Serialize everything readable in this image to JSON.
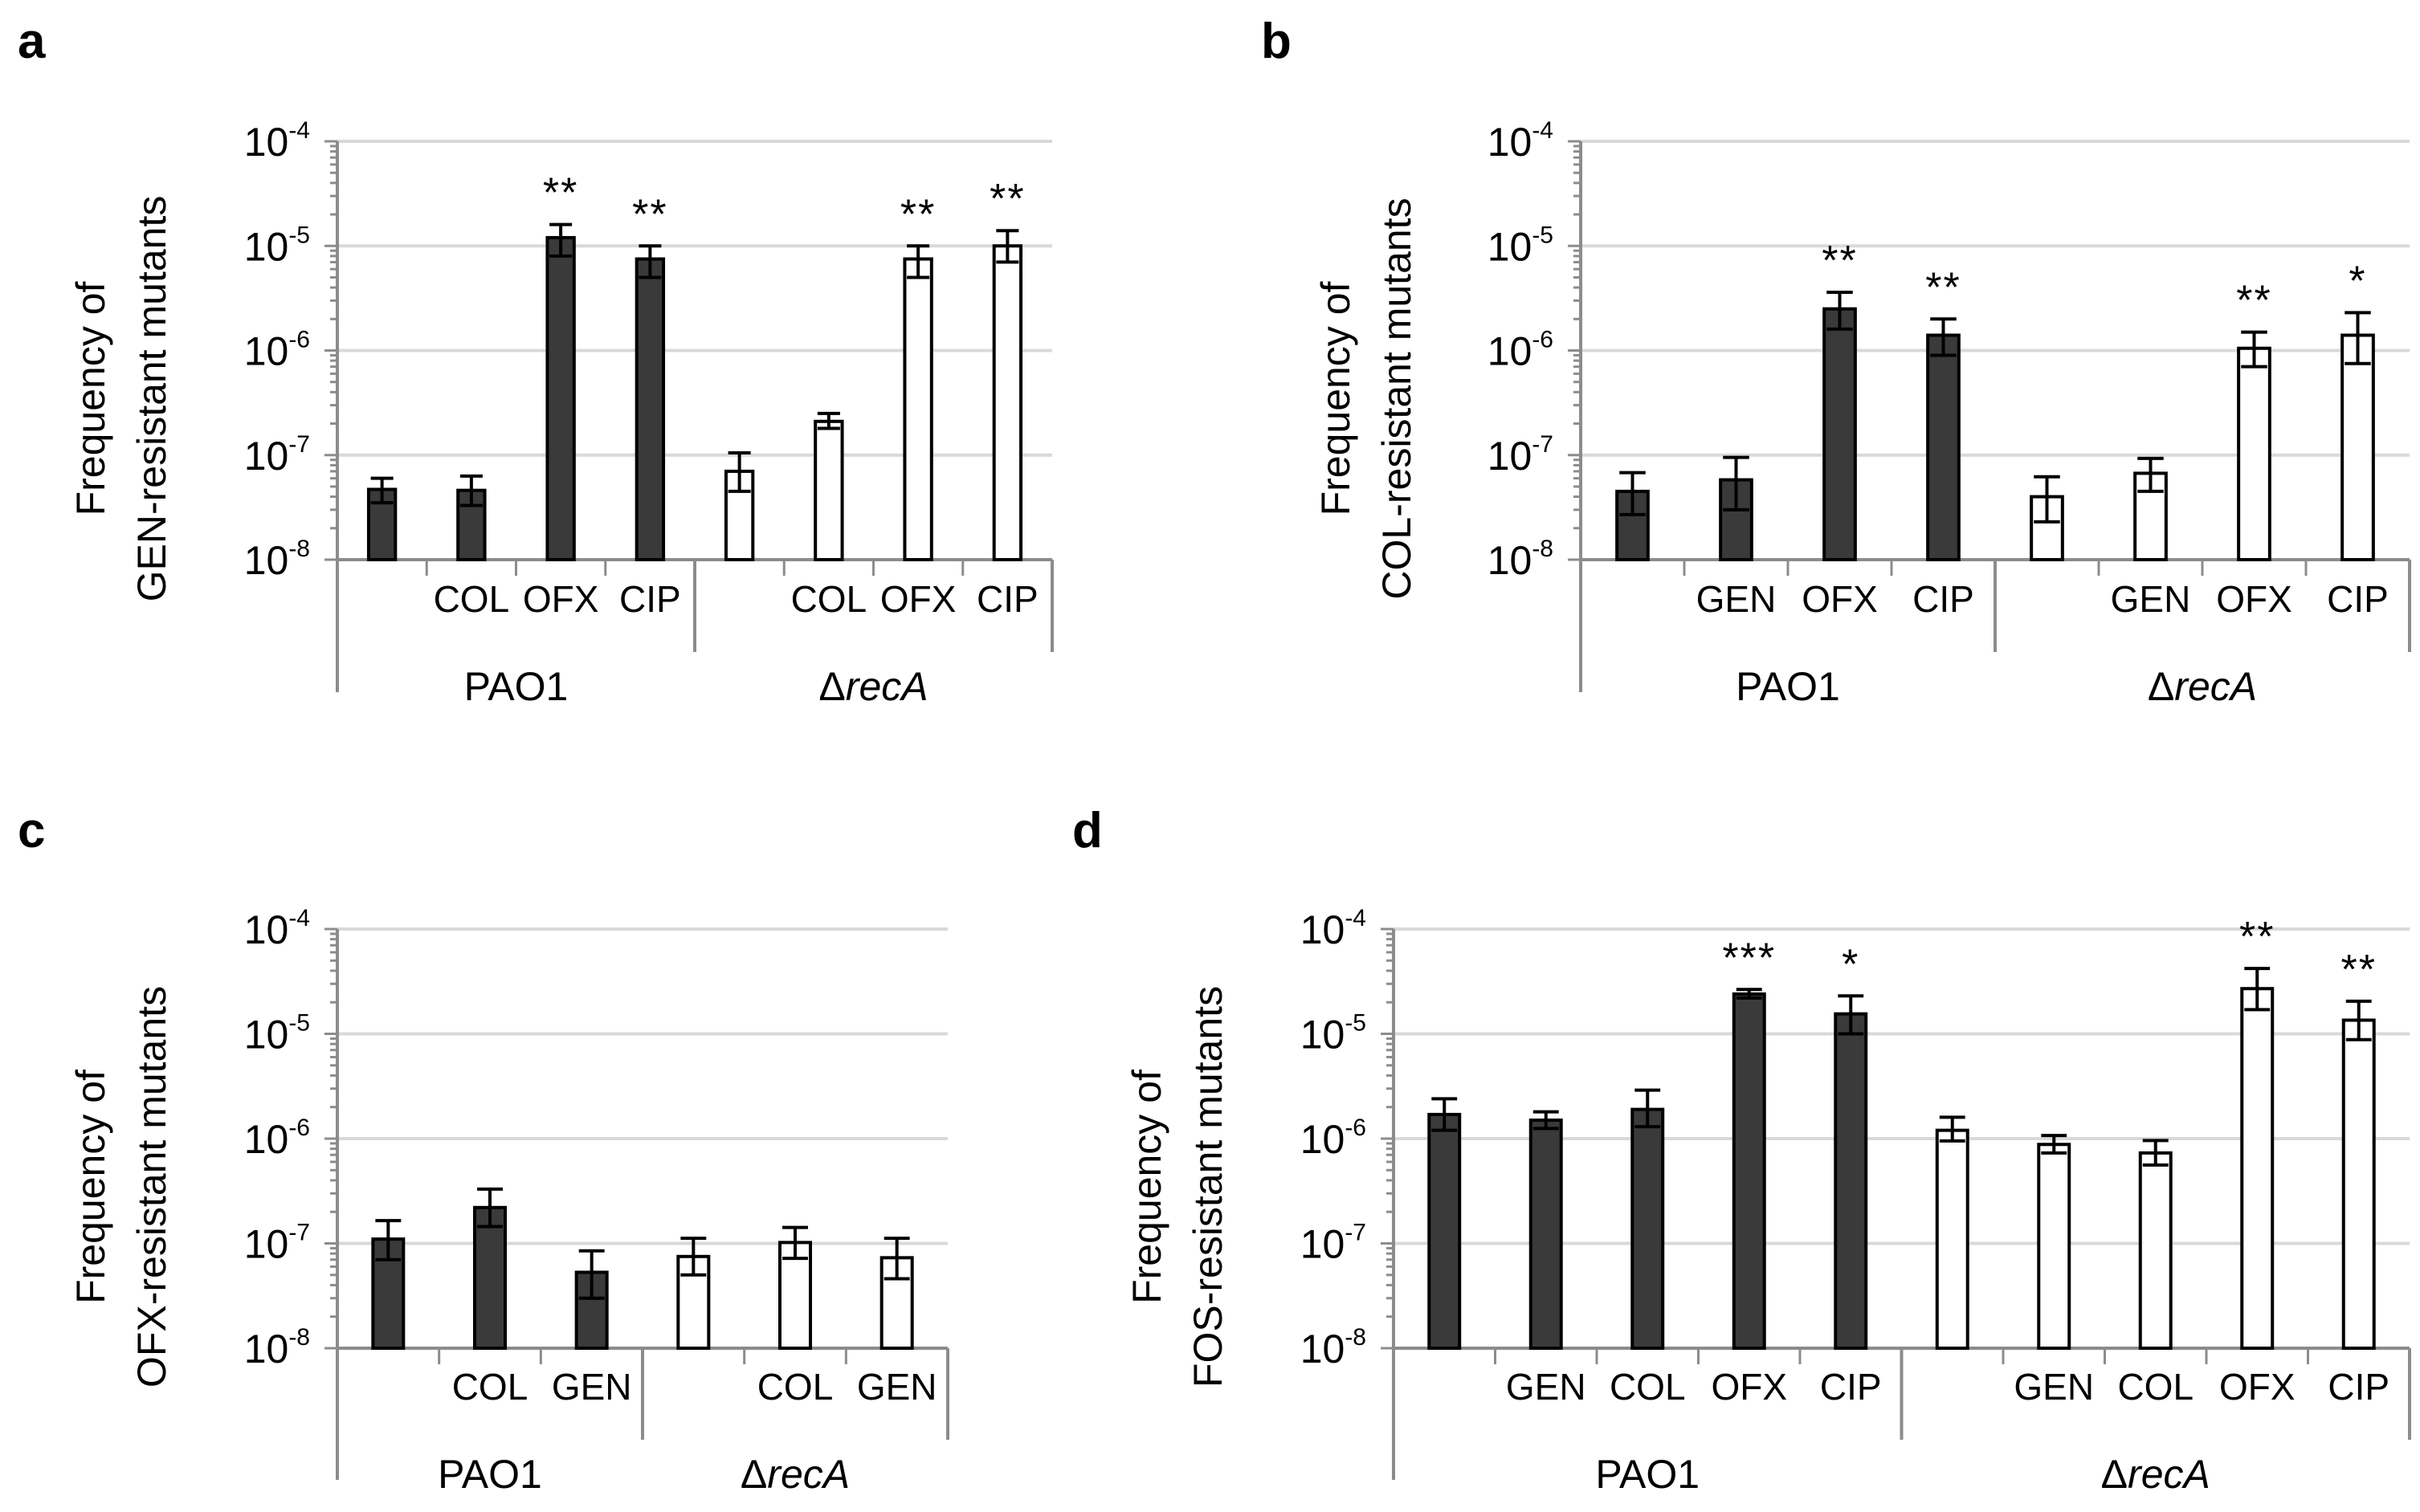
{
  "chart_data": [
    {
      "panel": "a",
      "type": "bar",
      "scale": "log",
      "ylabel_lines": [
        "Frequency of",
        "GEN-resistant mutants"
      ],
      "yticks": [
        {
          "base": "10",
          "exp": "-8"
        },
        {
          "base": "10",
          "exp": "-7"
        },
        {
          "base": "10",
          "exp": "-6"
        },
        {
          "base": "10",
          "exp": "-5"
        },
        {
          "base": "10",
          "exp": "-4"
        }
      ],
      "ylim_exp": [
        -8,
        -4
      ],
      "grid": true,
      "groups": [
        {
          "label": "PAO1",
          "italic": false,
          "fill": "#3a3a3a",
          "bars": [
            {
              "category": "",
              "value": 4.7e-08,
              "err_low": 3.5e-08,
              "err_high": 6e-08,
              "sig": ""
            },
            {
              "category": "COL",
              "value": 4.6e-08,
              "err_low": 3.3e-08,
              "err_high": 6.3e-08,
              "sig": ""
            },
            {
              "category": "OFX",
              "value": 1.2e-05,
              "err_low": 8e-06,
              "err_high": 1.6e-05,
              "sig": "**"
            },
            {
              "category": "CIP",
              "value": 7.5e-06,
              "err_low": 5e-06,
              "err_high": 1e-05,
              "sig": "**"
            }
          ]
        },
        {
          "label_prefix": "Δ",
          "label": "recA",
          "italic": true,
          "fill": "#ffffff",
          "bars": [
            {
              "category": "",
              "value": 7e-08,
              "err_low": 4.5e-08,
              "err_high": 1.05e-07,
              "sig": ""
            },
            {
              "category": "COL",
              "value": 2.1e-07,
              "err_low": 1.8e-07,
              "err_high": 2.5e-07,
              "sig": ""
            },
            {
              "category": "OFX",
              "value": 7.5e-06,
              "err_low": 5e-06,
              "err_high": 1e-05,
              "sig": "**"
            },
            {
              "category": "CIP",
              "value": 1e-05,
              "err_low": 7e-06,
              "err_high": 1.4e-05,
              "sig": "**"
            }
          ]
        }
      ]
    },
    {
      "panel": "b",
      "type": "bar",
      "scale": "log",
      "ylabel_lines": [
        "Frequency of",
        "COL-resistant mutants"
      ],
      "yticks": [
        {
          "base": "10",
          "exp": "-8"
        },
        {
          "base": "10",
          "exp": "-7"
        },
        {
          "base": "10",
          "exp": "-6"
        },
        {
          "base": "10",
          "exp": "-5"
        },
        {
          "base": "10",
          "exp": "-4"
        }
      ],
      "ylim_exp": [
        -8,
        -4
      ],
      "grid": true,
      "groups": [
        {
          "label": "PAO1",
          "italic": false,
          "fill": "#3a3a3a",
          "bars": [
            {
              "category": "",
              "value": 4.5e-08,
              "err_low": 2.7e-08,
              "err_high": 6.8e-08,
              "sig": ""
            },
            {
              "category": "GEN",
              "value": 5.8e-08,
              "err_low": 3e-08,
              "err_high": 9.5e-08,
              "sig": ""
            },
            {
              "category": "OFX",
              "value": 2.5e-06,
              "err_low": 1.6e-06,
              "err_high": 3.6e-06,
              "sig": "**"
            },
            {
              "category": "CIP",
              "value": 1.4e-06,
              "err_low": 9e-07,
              "err_high": 2e-06,
              "sig": "**"
            }
          ]
        },
        {
          "label_prefix": "Δ",
          "label": "recA",
          "italic": true,
          "fill": "#ffffff",
          "bars": [
            {
              "category": "",
              "value": 4e-08,
              "err_low": 2.3e-08,
              "err_high": 6.2e-08,
              "sig": ""
            },
            {
              "category": "GEN",
              "value": 6.7e-08,
              "err_low": 4.5e-08,
              "err_high": 9.3e-08,
              "sig": ""
            },
            {
              "category": "OFX",
              "value": 1.05e-06,
              "err_low": 7e-07,
              "err_high": 1.5e-06,
              "sig": "**"
            },
            {
              "category": "CIP",
              "value": 1.4e-06,
              "err_low": 7.5e-07,
              "err_high": 2.3e-06,
              "sig": "*"
            }
          ]
        }
      ]
    },
    {
      "panel": "c",
      "type": "bar",
      "scale": "log",
      "ylabel_lines": [
        "Frequency of",
        "OFX-resistant mutants"
      ],
      "yticks": [
        {
          "base": "10",
          "exp": "-8"
        },
        {
          "base": "10",
          "exp": "-7"
        },
        {
          "base": "10",
          "exp": "-6"
        },
        {
          "base": "10",
          "exp": "-5"
        },
        {
          "base": "10",
          "exp": "-4"
        }
      ],
      "ylim_exp": [
        -8,
        -4
      ],
      "grid": true,
      "groups": [
        {
          "label": "PAO1",
          "italic": false,
          "fill": "#3a3a3a",
          "bars": [
            {
              "category": "",
              "value": 1.1e-07,
              "err_low": 7e-08,
              "err_high": 1.65e-07,
              "sig": ""
            },
            {
              "category": "COL",
              "value": 2.2e-07,
              "err_low": 1.45e-07,
              "err_high": 3.3e-07,
              "sig": ""
            },
            {
              "category": "GEN",
              "value": 5.3e-08,
              "err_low": 3e-08,
              "err_high": 8.5e-08,
              "sig": ""
            }
          ]
        },
        {
          "label_prefix": "Δ",
          "label": "recA",
          "italic": true,
          "fill": "#ffffff",
          "bars": [
            {
              "category": "",
              "value": 7.5e-08,
              "err_low": 5e-08,
              "err_high": 1.12e-07,
              "sig": ""
            },
            {
              "category": "COL",
              "value": 1.02e-07,
              "err_low": 7.2e-08,
              "err_high": 1.42e-07,
              "sig": ""
            },
            {
              "category": "GEN",
              "value": 7.3e-08,
              "err_low": 4.6e-08,
              "err_high": 1.12e-07,
              "sig": ""
            }
          ]
        }
      ]
    },
    {
      "panel": "d",
      "type": "bar",
      "scale": "log",
      "ylabel_lines": [
        "Frequency of",
        "FOS-resistant mutants"
      ],
      "yticks": [
        {
          "base": "10",
          "exp": "-8"
        },
        {
          "base": "10",
          "exp": "-7"
        },
        {
          "base": "10",
          "exp": "-6"
        },
        {
          "base": "10",
          "exp": "-5"
        },
        {
          "base": "10",
          "exp": "-4"
        }
      ],
      "ylim_exp": [
        -8,
        -4
      ],
      "grid": true,
      "groups": [
        {
          "label": "PAO1",
          "italic": false,
          "fill": "#3a3a3a",
          "bars": [
            {
              "category": "",
              "value": 1.7e-06,
              "err_low": 1.2e-06,
              "err_high": 2.4e-06,
              "sig": ""
            },
            {
              "category": "GEN",
              "value": 1.5e-06,
              "err_low": 1.25e-06,
              "err_high": 1.8e-06,
              "sig": ""
            },
            {
              "category": "COL",
              "value": 1.9e-06,
              "err_low": 1.3e-06,
              "err_high": 2.9e-06,
              "sig": ""
            },
            {
              "category": "OFX",
              "value": 2.4e-05,
              "err_low": 2.2e-05,
              "err_high": 2.65e-05,
              "sig": "***"
            },
            {
              "category": "CIP",
              "value": 1.55e-05,
              "err_low": 1e-05,
              "err_high": 2.3e-05,
              "sig": "*"
            }
          ]
        },
        {
          "label_prefix": "Δ",
          "label": "recA",
          "italic": true,
          "fill": "#ffffff",
          "bars": [
            {
              "category": "",
              "value": 1.2e-06,
              "err_low": 9.5e-07,
              "err_high": 1.6e-06,
              "sig": ""
            },
            {
              "category": "GEN",
              "value": 8.8e-07,
              "err_low": 7.3e-07,
              "err_high": 1.07e-06,
              "sig": ""
            },
            {
              "category": "COL",
              "value": 7.3e-07,
              "err_low": 5.6e-07,
              "err_high": 9.6e-07,
              "sig": ""
            },
            {
              "category": "OFX",
              "value": 2.7e-05,
              "err_low": 1.7e-05,
              "err_high": 4.2e-05,
              "sig": "**"
            },
            {
              "category": "CIP",
              "value": 1.35e-05,
              "err_low": 8.8e-06,
              "err_high": 2.05e-05,
              "sig": "**"
            }
          ]
        }
      ]
    }
  ],
  "colors": {
    "pao1_fill": "#3a3a3a",
    "reca_fill": "#ffffff",
    "grid": "#d9d9d9",
    "axis": "#8c8c8c"
  }
}
